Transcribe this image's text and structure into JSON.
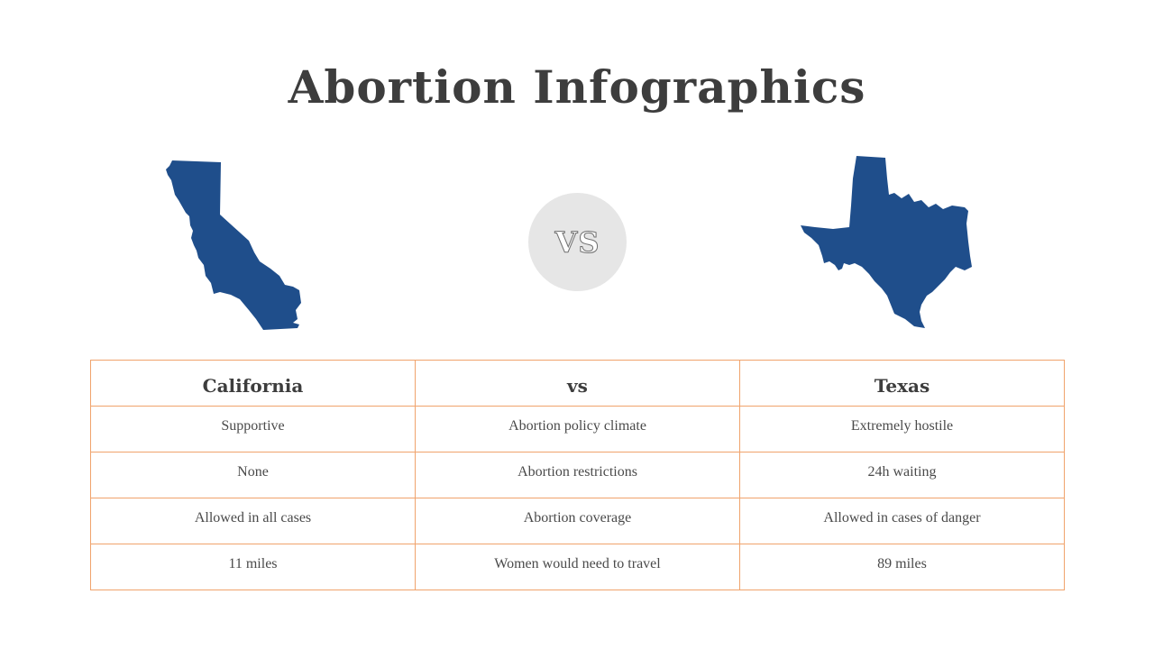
{
  "title": "Abortion Infographics",
  "vs_label": "VS",
  "colors": {
    "map_fill": "#1f4e8b",
    "table_border": "#f0a36c",
    "vs_circle": "#e6e6e6",
    "title_text": "#3d3d3d"
  },
  "maps": {
    "left_icon": "california-map-icon",
    "right_icon": "texas-map-icon"
  },
  "table": {
    "headers": [
      "California",
      "vs",
      "Texas"
    ],
    "rows": [
      [
        "Supportive",
        "Abortion policy climate",
        "Extremely hostile"
      ],
      [
        "None",
        "Abortion restrictions",
        "24h waiting"
      ],
      [
        "Allowed in all cases",
        "Abortion coverage",
        "Allowed in cases of danger"
      ],
      [
        "11 miles",
        "Women would need to travel",
        "89 miles"
      ]
    ]
  }
}
